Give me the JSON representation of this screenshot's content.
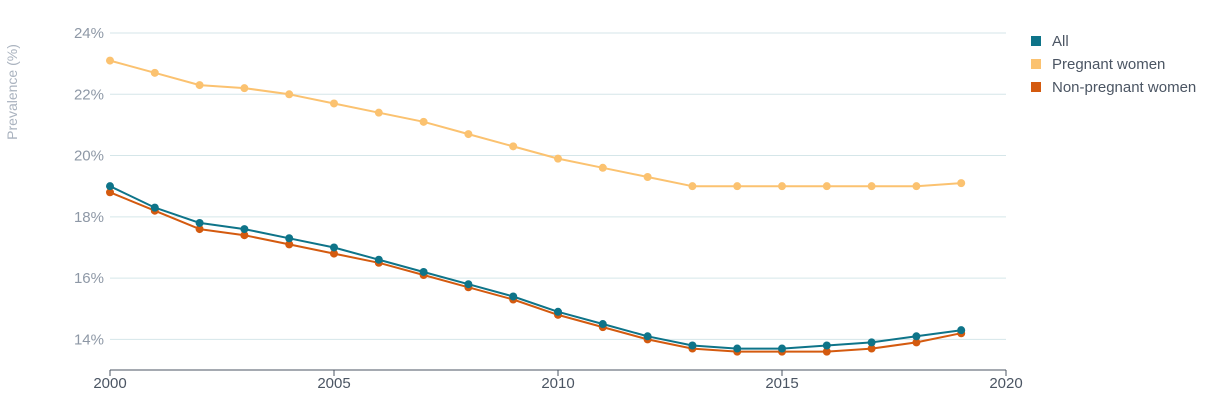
{
  "chart_data": {
    "type": "line",
    "title": "",
    "xlabel": "",
    "ylabel": "Prevalence (%)",
    "x": [
      2000,
      2001,
      2002,
      2003,
      2004,
      2005,
      2006,
      2007,
      2008,
      2009,
      2010,
      2011,
      2012,
      2013,
      2014,
      2015,
      2016,
      2017,
      2018,
      2019
    ],
    "xlim": [
      2000,
      2020
    ],
    "ylim": [
      13,
      24
    ],
    "x_ticks": [
      2000,
      2005,
      2010,
      2015,
      2020
    ],
    "y_ticks": [
      14,
      16,
      18,
      20,
      22,
      24
    ],
    "y_tick_labels": [
      "14%",
      "16%",
      "18%",
      "20%",
      "22%",
      "24%"
    ],
    "grid": "horizontal",
    "legend_position": "right",
    "series": [
      {
        "name": "All",
        "color": "#0e7489",
        "values": [
          19.0,
          18.3,
          17.8,
          17.6,
          17.3,
          17.0,
          16.6,
          16.2,
          15.8,
          15.4,
          14.9,
          14.5,
          14.1,
          13.8,
          13.7,
          13.7,
          13.8,
          13.9,
          14.1,
          14.3
        ]
      },
      {
        "name": "Pregnant women",
        "color": "#fbc270",
        "values": [
          23.1,
          22.7,
          22.3,
          22.2,
          22.0,
          21.7,
          21.4,
          21.1,
          20.7,
          20.3,
          19.9,
          19.6,
          19.3,
          19.0,
          19.0,
          19.0,
          19.0,
          19.0,
          19.0,
          19.1
        ]
      },
      {
        "name": "Non-pregnant women",
        "color": "#d45a0f",
        "values": [
          18.8,
          18.2,
          17.6,
          17.4,
          17.1,
          16.8,
          16.5,
          16.1,
          15.7,
          15.3,
          14.8,
          14.4,
          14.0,
          13.7,
          13.6,
          13.6,
          13.6,
          13.7,
          13.9,
          14.2
        ]
      }
    ]
  }
}
